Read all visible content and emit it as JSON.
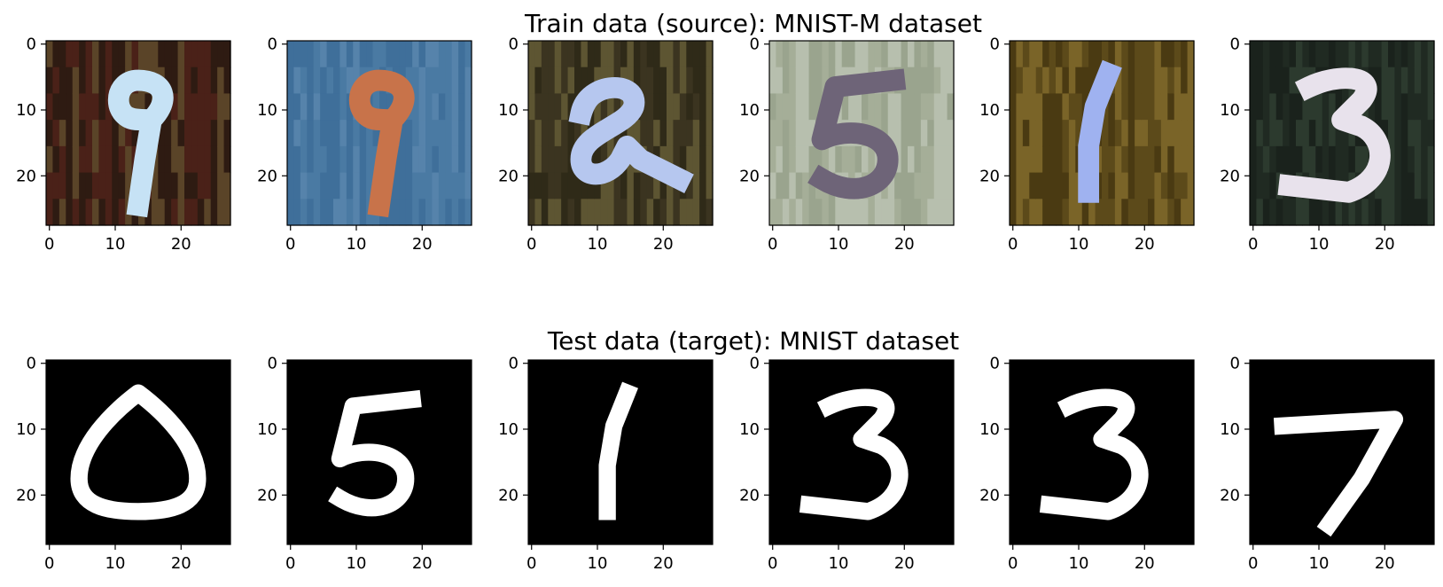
{
  "figure": {
    "rows": [
      {
        "title": "Train data (source): MNIST-M dataset",
        "dataset": "MNIST-M",
        "panels": [
          {
            "digit": "9",
            "style": "color",
            "bg": [
              "#4a2118",
              "#2e1b12",
              "#5a4428"
            ],
            "fg": "#c6e2f5"
          },
          {
            "digit": "9",
            "style": "color",
            "bg": [
              "#3f6f9a",
              "#5683ab",
              "#4a7aa3"
            ],
            "fg": "#c8734a"
          },
          {
            "digit": "2",
            "style": "color",
            "bg": [
              "#2f2a18",
              "#5d5532",
              "#3b3420"
            ],
            "fg": "#b6c7ef"
          },
          {
            "digit": "5",
            "style": "color",
            "bg": [
              "#9aa48e",
              "#b7bfae",
              "#a5ae98"
            ],
            "fg": "#6e6478"
          },
          {
            "digit": "1",
            "style": "color",
            "bg": [
              "#4a3a12",
              "#7a6428",
              "#5c4a1a"
            ],
            "fg": "#9fb2f0"
          },
          {
            "digit": "3",
            "style": "color",
            "bg": [
              "#1a221c",
              "#2c3a2e",
              "#202a22"
            ],
            "fg": "#e8e2ec"
          }
        ]
      },
      {
        "title": "Test data (target): MNIST dataset",
        "dataset": "MNIST",
        "panels": [
          {
            "digit": "0",
            "style": "gray",
            "bg": [
              "#000000",
              "#000000",
              "#000000"
            ],
            "fg": "#ffffff"
          },
          {
            "digit": "5",
            "style": "gray",
            "bg": [
              "#000000",
              "#000000",
              "#000000"
            ],
            "fg": "#ffffff"
          },
          {
            "digit": "1",
            "style": "gray",
            "bg": [
              "#000000",
              "#000000",
              "#000000"
            ],
            "fg": "#ffffff"
          },
          {
            "digit": "3",
            "style": "gray",
            "bg": [
              "#000000",
              "#000000",
              "#000000"
            ],
            "fg": "#ffffff"
          },
          {
            "digit": "3",
            "style": "gray",
            "bg": [
              "#000000",
              "#000000",
              "#000000"
            ],
            "fg": "#ffffff"
          },
          {
            "digit": "7",
            "style": "gray",
            "bg": [
              "#000000",
              "#000000",
              "#000000"
            ],
            "fg": "#ffffff"
          }
        ]
      }
    ],
    "axes": {
      "x_ticks": [
        "0",
        "10",
        "20"
      ],
      "y_ticks": [
        "0",
        "10",
        "20"
      ],
      "x_tick_values": [
        0,
        10,
        20
      ],
      "y_tick_values": [
        0,
        10,
        20
      ],
      "range": [
        -0.5,
        27.5
      ]
    }
  }
}
